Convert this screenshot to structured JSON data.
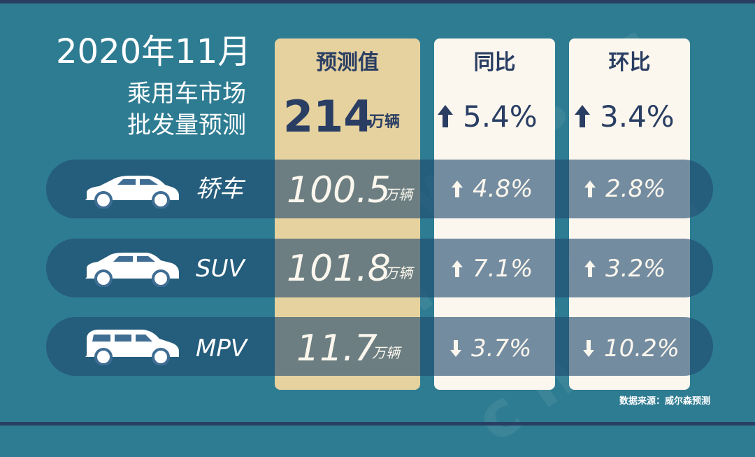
{
  "title": {
    "line1": "2020年11月",
    "line2": "乘用车市场",
    "line3": "批发量预测"
  },
  "columns": {
    "forecast": "预测值",
    "yoy": "同比",
    "mom": "环比"
  },
  "total": {
    "value": "214",
    "unit": "万辆",
    "yoy": "5.4%",
    "yoy_direction": "up",
    "mom": "3.4%",
    "mom_direction": "up"
  },
  "rows": [
    {
      "label": "轿车",
      "icon": "sedan-icon",
      "value": "100.5",
      "unit": "万辆",
      "yoy": "4.8%",
      "yoy_direction": "up",
      "mom": "2.8%",
      "mom_direction": "up"
    },
    {
      "label": "SUV",
      "icon": "suv-icon",
      "value": "101.8",
      "unit": "万辆",
      "yoy": "7.1%",
      "yoy_direction": "up",
      "mom": "3.2%",
      "mom_direction": "up"
    },
    {
      "label": "MPV",
      "icon": "mpv-icon",
      "value": "11.7",
      "unit": "万辆",
      "yoy": "3.7%",
      "yoy_direction": "down",
      "mom": "10.2%",
      "mom_direction": "down"
    }
  ],
  "source": "数据来源：威尔森预测",
  "colors": {
    "background": "#2e7c92",
    "navy": "#2a3e63",
    "gold": "#e6d29f",
    "cream": "#fbf7ee"
  }
}
